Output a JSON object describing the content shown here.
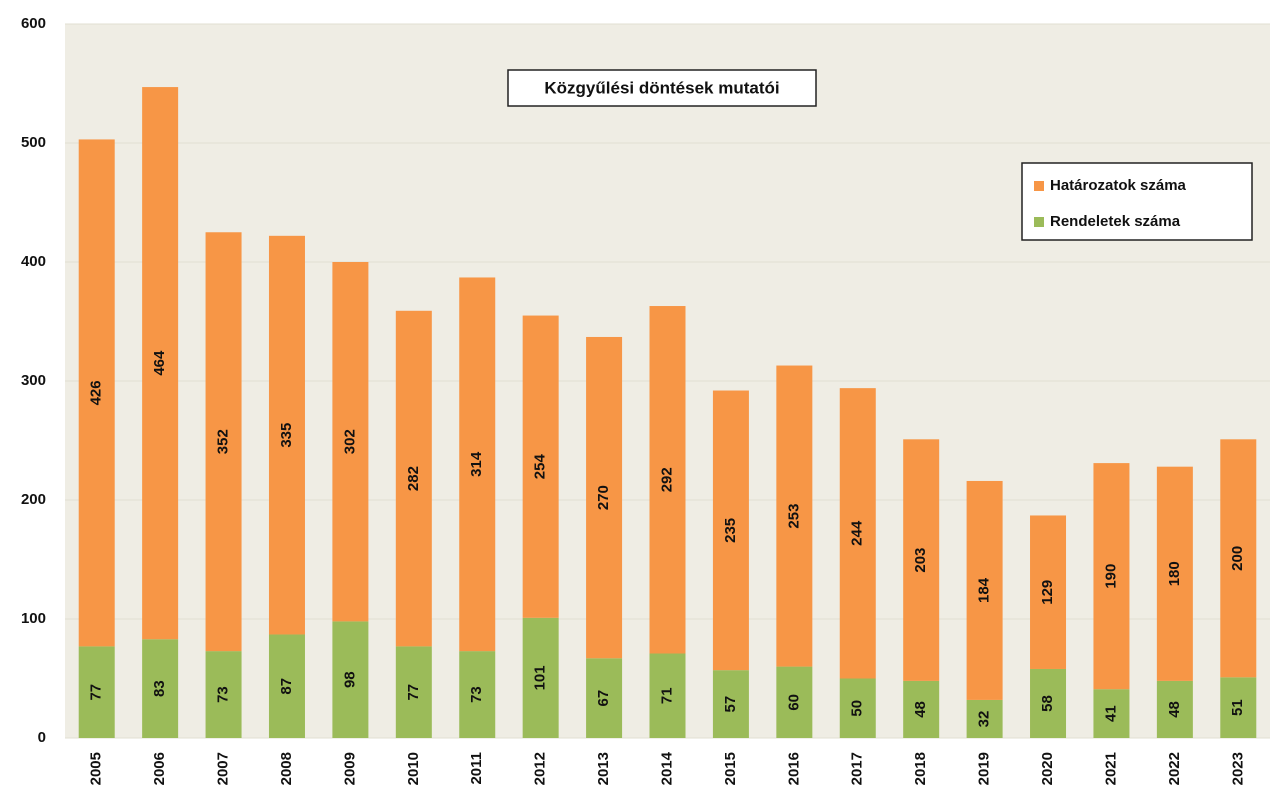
{
  "chart_data": {
    "type": "bar",
    "stacked": true,
    "title": "Közgyűlési döntések mutatói",
    "categories": [
      "2005",
      "2006",
      "2007",
      "2008",
      "2009",
      "2010",
      "2011",
      "2012",
      "2013",
      "2014",
      "2015",
      "2016",
      "2017",
      "2018",
      "2019",
      "2020",
      "2021",
      "2022",
      "2023"
    ],
    "series": [
      {
        "name": "Rendeletek száma",
        "color": "#9bbb59",
        "values": [
          77,
          83,
          73,
          87,
          98,
          77,
          73,
          101,
          67,
          71,
          57,
          60,
          50,
          48,
          32,
          58,
          41,
          48,
          51
        ]
      },
      {
        "name": "Határozatok száma",
        "color": "#f79646",
        "values": [
          426,
          464,
          352,
          335,
          302,
          282,
          314,
          254,
          270,
          292,
          235,
          253,
          244,
          203,
          184,
          129,
          190,
          180,
          200
        ]
      }
    ],
    "ylim": [
      0,
      600
    ],
    "yticks": [
      0,
      100,
      200,
      300,
      400,
      500,
      600
    ],
    "grid": true,
    "legend": "upper right"
  }
}
